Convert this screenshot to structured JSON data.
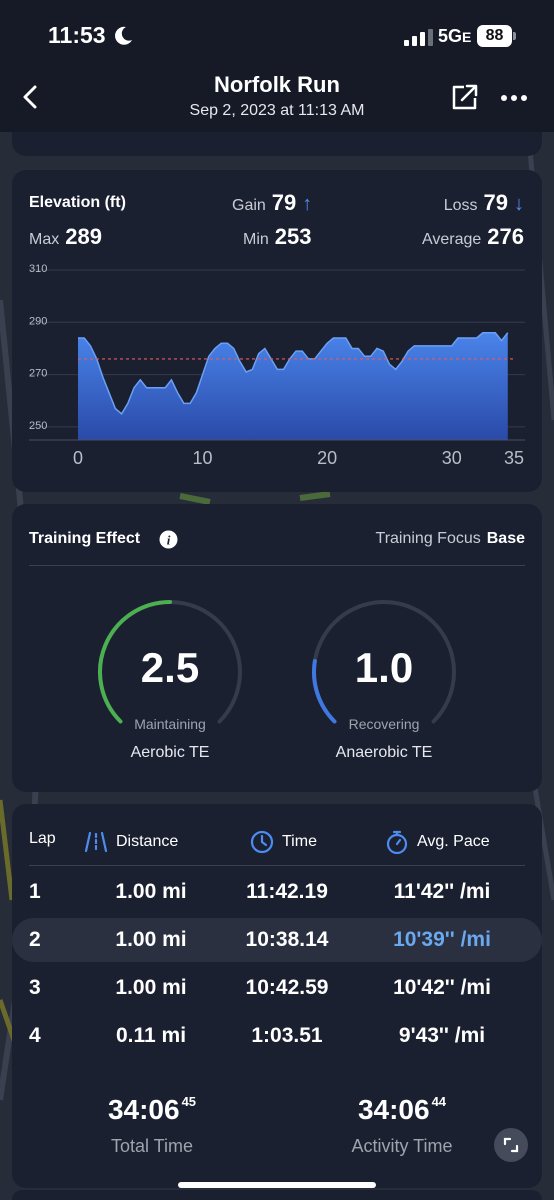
{
  "status": {
    "time": "11:53",
    "network": "5G",
    "network_suffix": "E",
    "battery": "88"
  },
  "header": {
    "title": "Norfolk Run",
    "subtitle": "Sep 2, 2023 at 11:13 AM"
  },
  "elevation": {
    "title": "Elevation (ft)",
    "gain_label": "Gain",
    "gain_value": "79",
    "loss_label": "Loss",
    "loss_value": "79",
    "max_label": "Max",
    "max_value": "289",
    "min_label": "Min",
    "min_value": "253",
    "avg_label": "Average",
    "avg_value": "276",
    "accent": "#3f78e0"
  },
  "chart_data": {
    "type": "area",
    "xlabel": "",
    "ylabel": "",
    "xlim": [
      0,
      35
    ],
    "ylim": [
      245,
      310
    ],
    "yticks": [
      "310",
      "290",
      "270",
      "250"
    ],
    "xticks": [
      "0",
      "10",
      "20",
      "30",
      "35"
    ],
    "average_line": 276,
    "x": [
      0,
      0.5,
      1,
      1.5,
      2,
      2.5,
      3,
      3.5,
      4,
      4.5,
      5,
      5.5,
      6,
      6.5,
      7,
      7.5,
      8,
      8.5,
      9,
      9.5,
      10,
      10.5,
      11,
      11.5,
      12,
      12.5,
      13,
      13.5,
      14,
      14.5,
      15,
      15.5,
      16,
      16.5,
      17,
      17.5,
      18,
      18.5,
      19,
      19.5,
      20,
      20.5,
      21,
      21.5,
      22,
      22.5,
      23,
      23.5,
      24,
      24.5,
      25,
      25.5,
      26,
      26.5,
      27,
      27.5,
      28,
      28.5,
      29,
      29.5,
      30,
      30.5,
      31,
      31.5,
      32,
      32.5,
      33,
      33.5,
      34,
      34.5
    ],
    "values": [
      284,
      284,
      281,
      276,
      269,
      263,
      257,
      255,
      259,
      265,
      268,
      265,
      265,
      265,
      265,
      268,
      263,
      259,
      259,
      263,
      270,
      277,
      280,
      282,
      282,
      280,
      275,
      271,
      272,
      278,
      280,
      276,
      272,
      272,
      276,
      279,
      279,
      276,
      276,
      279,
      282,
      284,
      284,
      284,
      280,
      280,
      277,
      277,
      280,
      279,
      274,
      272,
      275,
      279,
      281,
      281,
      281,
      281,
      281,
      281,
      281,
      284,
      284,
      284,
      284,
      286,
      286,
      286,
      283,
      286
    ]
  },
  "training": {
    "title": "Training Effect",
    "focus_label": "Training Focus",
    "focus_value": "Base",
    "aerobic": {
      "value": "2.5",
      "state": "Maintaining",
      "name": "Aerobic TE",
      "level": 2.5,
      "max": 5,
      "color": "#4caf50"
    },
    "anaerobic": {
      "value": "1.0",
      "state": "Recovering",
      "name": "Anaerobic TE",
      "level": 1.0,
      "max": 5,
      "color": "#3f78e0"
    }
  },
  "laps": {
    "headers": {
      "lap": "Lap",
      "distance": "Distance",
      "time": "Time",
      "pace": "Avg. Pace"
    },
    "rows": [
      {
        "lap": "1",
        "distance": "1.00 mi",
        "time": "11:42.19",
        "pace": "11'42'' /mi"
      },
      {
        "lap": "2",
        "distance": "1.00 mi",
        "time": "10:38.14",
        "pace": "10'39'' /mi"
      },
      {
        "lap": "3",
        "distance": "1.00 mi",
        "time": "10:42.59",
        "pace": "10'42'' /mi"
      },
      {
        "lap": "4",
        "distance": "0.11 mi",
        "time": "1:03.51",
        "pace": "9'43'' /mi"
      }
    ],
    "total_time": "34:06",
    "total_time_sup": "45",
    "total_time_label": "Total Time",
    "activity_time": "34:06",
    "activity_time_sup": "44",
    "activity_time_label": "Activity Time"
  }
}
